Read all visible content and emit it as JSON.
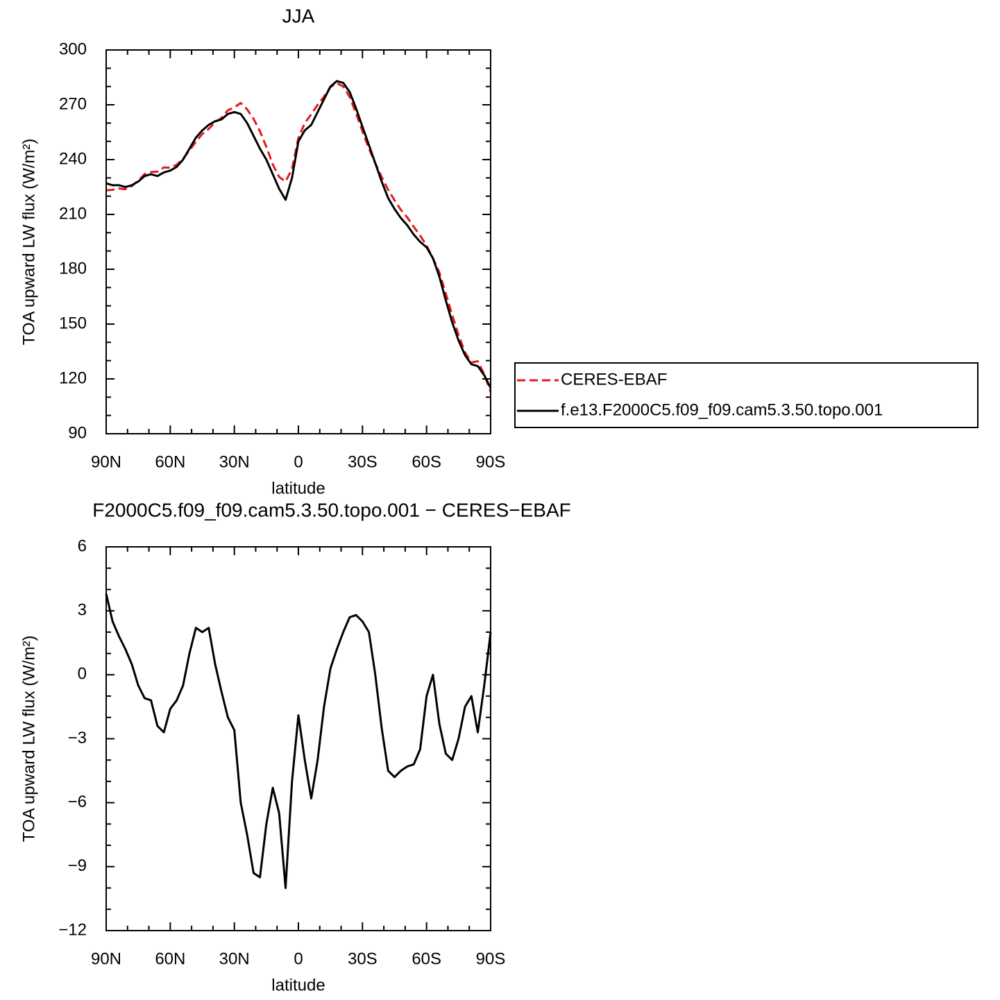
{
  "chart_data": [
    {
      "type": "line",
      "title": "JJA",
      "x_label": "latitude",
      "y_label": "TOA upward LW flux (W/m²)",
      "x": [
        90,
        87,
        84,
        81,
        78,
        75,
        72,
        69,
        66,
        63,
        60,
        57,
        54,
        51,
        48,
        45,
        42,
        39,
        36,
        33,
        30,
        27,
        24,
        21,
        18,
        15,
        12,
        9,
        6,
        3,
        0,
        -3,
        -6,
        -9,
        -12,
        -15,
        -18,
        -21,
        -24,
        -27,
        -30,
        -33,
        -36,
        -39,
        -42,
        -45,
        -48,
        -51,
        -54,
        -57,
        -60,
        -63,
        -66,
        -69,
        -72,
        -75,
        -78,
        -81,
        -84,
        -87,
        -90
      ],
      "series": [
        {
          "name": "CERES-EBAF",
          "color": "#e31a1c",
          "dashed": true,
          "values": [
            223.2,
            223.5,
            224.2,
            223.8,
            225.5,
            228.5,
            232.1,
            233.2,
            233.4,
            235.7,
            235.6,
            237.2,
            240.5,
            245,
            249.8,
            254,
            256.8,
            260.5,
            262.8,
            267,
            268.6,
            271,
            267.5,
            262.3,
            255.5,
            247,
            237.3,
            230.5,
            228,
            235,
            251.9,
            260,
            264.8,
            270,
            274.5,
            279.7,
            281.8,
            280,
            274.3,
            265.2,
            255.5,
            246,
            238,
            230.5,
            223.5,
            217.8,
            212.5,
            208.3,
            203.2,
            198.5,
            193,
            186,
            178.3,
            166.7,
            155,
            144,
            134.5,
            129,
            129.7,
            122.5,
            113
          ]
        },
        {
          "name": "f.e13.F2000C5.f09_f09.cam5.3.50.topo.001",
          "color": "#000000",
          "dashed": false,
          "values": [
            227,
            226,
            226,
            225,
            226,
            228,
            231,
            232,
            231,
            233,
            234,
            236,
            240,
            246,
            252,
            256,
            259,
            261,
            262,
            265,
            266,
            265,
            260,
            253,
            246,
            240,
            232,
            224,
            218,
            230,
            250,
            256,
            259,
            266,
            273,
            280,
            283,
            282,
            277,
            268,
            258,
            248,
            238,
            228,
            219,
            213,
            208,
            204,
            199,
            195,
            192,
            186,
            176,
            163,
            151,
            141,
            133,
            128,
            127,
            122,
            115
          ]
        }
      ],
      "xlim": [
        90,
        -90
      ],
      "xticks": [
        {
          "value": 90,
          "label": "90N"
        },
        {
          "value": 60,
          "label": "60N"
        },
        {
          "value": 30,
          "label": "30N"
        },
        0,
        {
          "value": -30,
          "label": "30S"
        },
        {
          "value": -60,
          "label": "60S"
        },
        {
          "value": -90,
          "label": "90S"
        }
      ],
      "ylim": [
        90,
        300
      ],
      "yticks": [
        90,
        120,
        150,
        180,
        210,
        240,
        270,
        300
      ],
      "legend": "right"
    },
    {
      "type": "line",
      "title": "F2000C5.f09_f09.cam5.3.50.topo.001 − CERES−EBAF",
      "x_label": "latitude",
      "y_label": "TOA upward LW flux (W/m²)",
      "x": [
        90,
        87,
        84,
        81,
        78,
        75,
        72,
        69,
        66,
        63,
        60,
        57,
        54,
        51,
        48,
        45,
        42,
        39,
        36,
        33,
        30,
        27,
        24,
        21,
        18,
        15,
        12,
        9,
        6,
        3,
        0,
        -3,
        -6,
        -9,
        -12,
        -15,
        -18,
        -21,
        -24,
        -27,
        -30,
        -33,
        -36,
        -39,
        -42,
        -45,
        -48,
        -51,
        -54,
        -57,
        -60,
        -63,
        -66,
        -69,
        -72,
        -75,
        -78,
        -81,
        -84,
        -87,
        -90
      ],
      "series": [
        {
          "color": "#000000",
          "dashed": false,
          "values": [
            3.8,
            2.5,
            1.8,
            1.2,
            0.5,
            -0.5,
            -1.1,
            -1.2,
            -2.4,
            -2.7,
            -1.6,
            -1.2,
            -0.5,
            1.0,
            2.2,
            2.0,
            2.2,
            0.5,
            -0.8,
            -2.0,
            -2.6,
            -6.0,
            -7.5,
            -9.3,
            -9.5,
            -7.0,
            -5.3,
            -6.5,
            -10.0,
            -5.0,
            -1.9,
            -4.0,
            -5.8,
            -4.0,
            -1.5,
            0.3,
            1.2,
            2.0,
            2.7,
            2.8,
            2.5,
            2.0,
            0.0,
            -2.5,
            -4.5,
            -4.8,
            -4.5,
            -4.3,
            -4.2,
            -3.5,
            -1.0,
            0.0,
            -2.3,
            -3.7,
            -4.0,
            -3.0,
            -1.5,
            -1.0,
            -2.7,
            -0.5,
            2.0
          ]
        }
      ],
      "xlim": [
        90,
        -90
      ],
      "xticks": [
        {
          "value": 90,
          "label": "90N"
        },
        {
          "value": 60,
          "label": "60N"
        },
        {
          "value": 30,
          "label": "30N"
        },
        0,
        {
          "value": -30,
          "label": "30S"
        },
        {
          "value": -60,
          "label": "60S"
        },
        {
          "value": -90,
          "label": "90S"
        }
      ],
      "ylim": [
        -12,
        6
      ],
      "yticks": [
        {
          "value": -12,
          "label": "−12"
        },
        {
          "value": -9,
          "label": "−9"
        },
        {
          "value": -6,
          "label": "−6"
        },
        {
          "value": -3,
          "label": "−3"
        },
        0,
        3,
        6
      ]
    }
  ]
}
